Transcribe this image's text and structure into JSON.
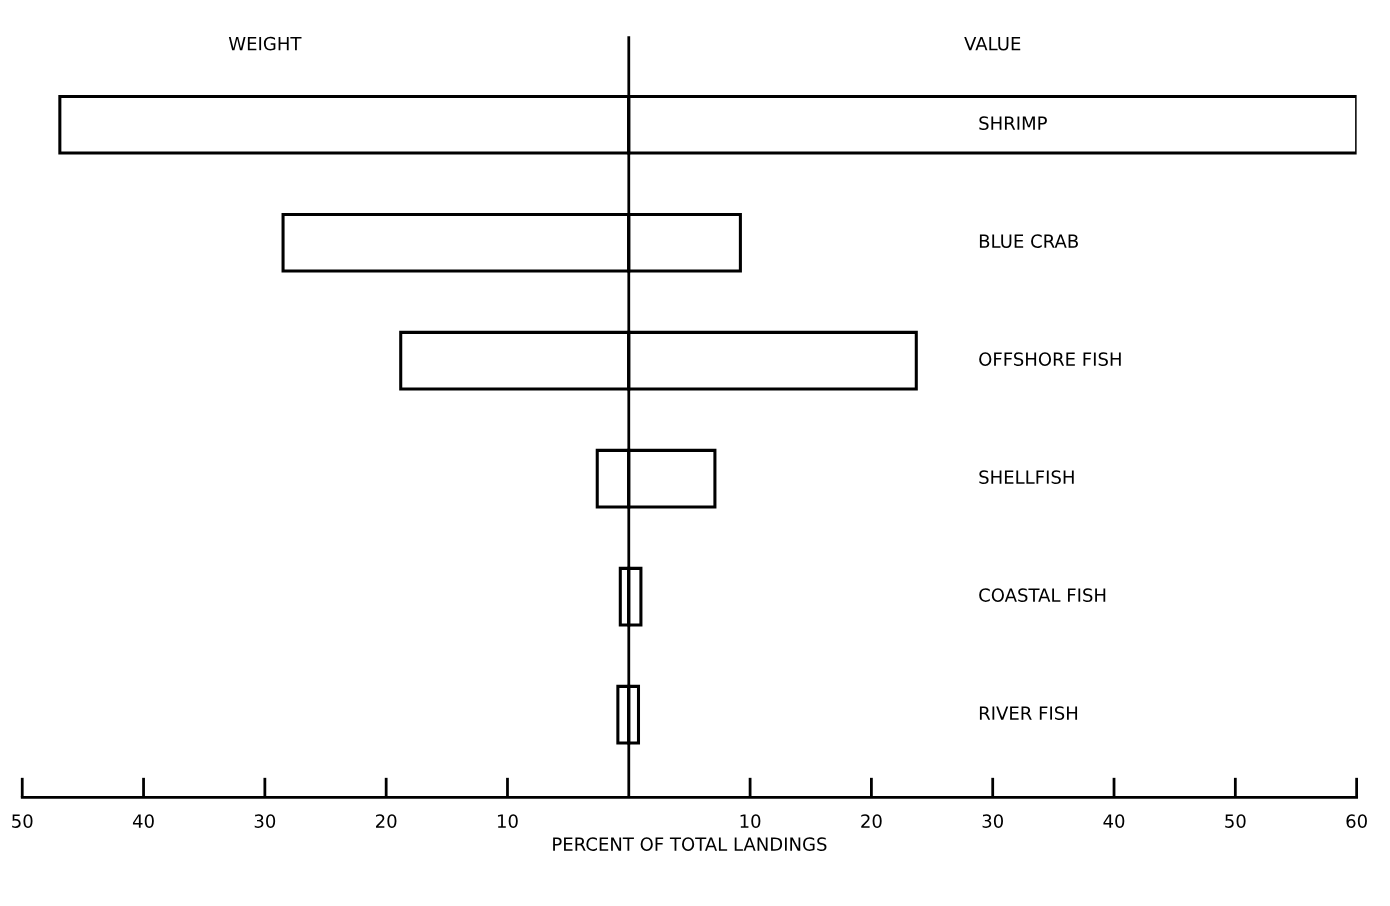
{
  "chart_data": {
    "type": "bar",
    "orientation": "horizontal",
    "xlabel": "PERCENT OF TOTAL LANDINGS",
    "categories": [
      "SHRIMP",
      "BLUE CRAB",
      "OFFSHORE FISH",
      "SHELLFISH",
      "COASTAL FISH",
      "RIVER FISH"
    ],
    "series": [
      {
        "name": "WEIGHT",
        "color": "#000000",
        "values": [
          -46.9,
          -28.5,
          -18.8,
          -2.6,
          -0.7,
          -0.9
        ]
      },
      {
        "name": "VALUE",
        "color": "#000000",
        "values": [
          60,
          9.2,
          23.7,
          7.1,
          1.0,
          0.8
        ]
      }
    ],
    "xlim": [
      -50,
      60
    ],
    "xticks": [
      {
        "value": -50,
        "label": "50"
      },
      {
        "value": -40,
        "label": "40"
      },
      {
        "value": -30,
        "label": "30"
      },
      {
        "value": -20,
        "label": "20"
      },
      {
        "value": -10,
        "label": "10"
      },
      {
        "value": 10,
        "label": "10"
      },
      {
        "value": 20,
        "label": "20"
      },
      {
        "value": 30,
        "label": "30"
      },
      {
        "value": 40,
        "label": "40"
      },
      {
        "value": 50,
        "label": "50"
      },
      {
        "value": 60,
        "label": "60"
      }
    ],
    "ref_lines": [
      {
        "axis": "x",
        "value": 0,
        "color": "#000000"
      }
    ],
    "stacked": true,
    "grid": false,
    "legend": false
  }
}
